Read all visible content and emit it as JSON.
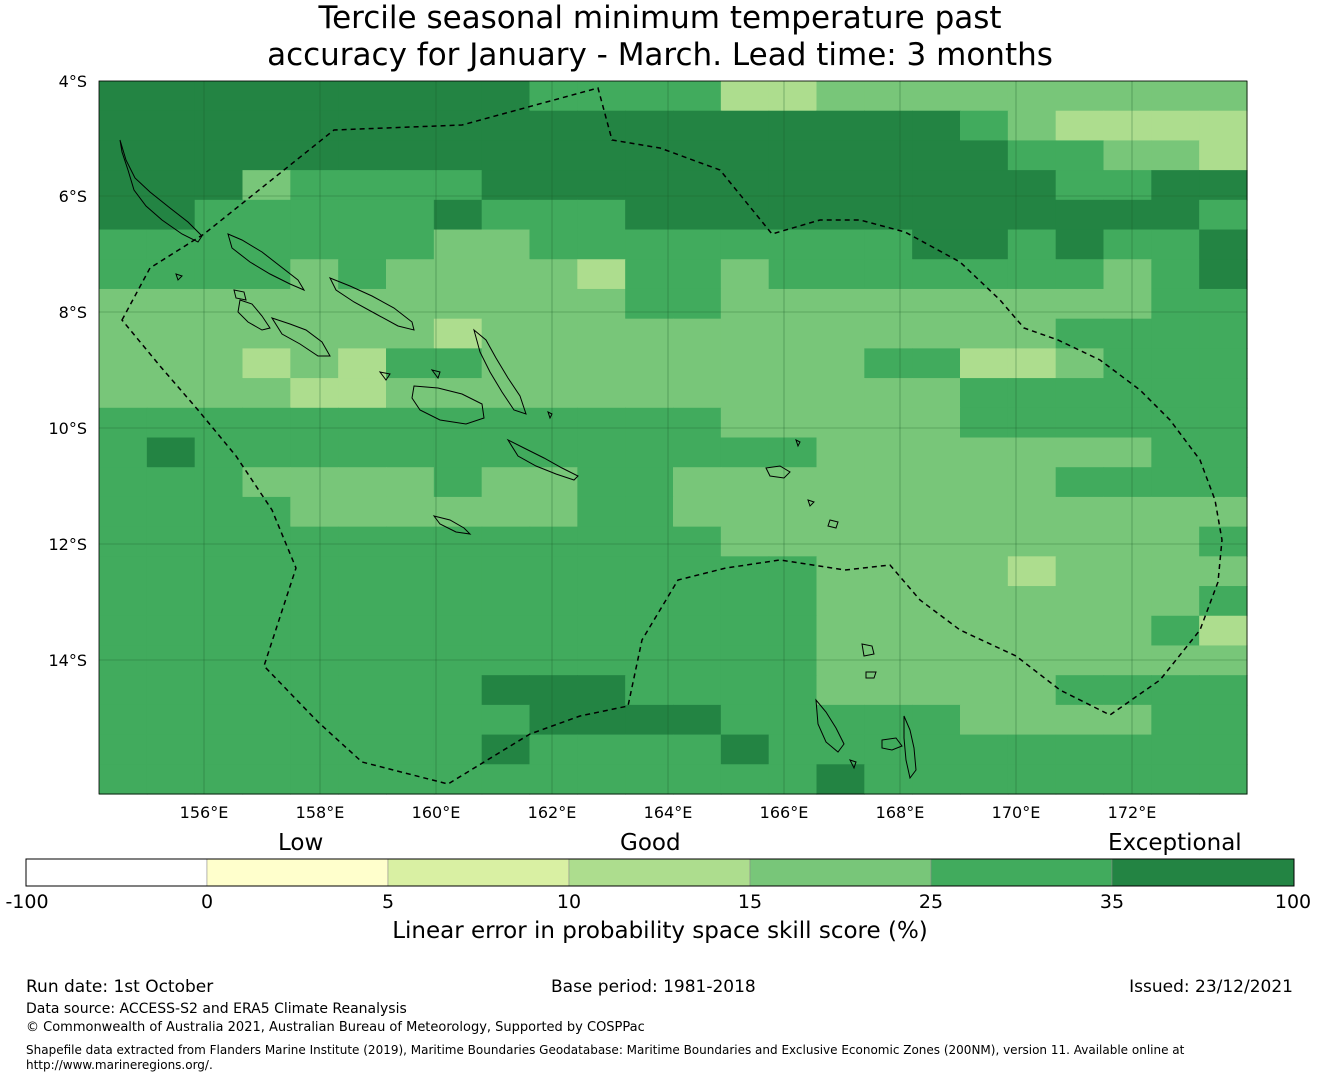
{
  "title_line1": "Tercile seasonal minimum temperature past",
  "title_line2": "accuracy for January - March. Lead time: 3 months",
  "map": {
    "lat_labels": [
      "4°S",
      "6°S",
      "8°S",
      "10°S",
      "12°S",
      "14°S"
    ],
    "lon_labels": [
      "156°E",
      "158°E",
      "160°E",
      "162°E",
      "164°E",
      "166°E",
      "168°E",
      "170°E",
      "172°E"
    ]
  },
  "legend": {
    "categories": [
      "Low",
      "Good",
      "Exceptional"
    ],
    "ticks": [
      "-100",
      "0",
      "5",
      "10",
      "15",
      "25",
      "35",
      "100"
    ],
    "colors": [
      "#ffffff",
      "#ffffcc",
      "#d9f0a3",
      "#addd8e",
      "#78c679",
      "#41ab5d",
      "#238443"
    ],
    "title": "Linear error in probability space skill score (%)"
  },
  "footer": {
    "run_date": "Run date: 1st October",
    "base_period": "Base period: 1981-2018",
    "issued": "Issued: 23/12/2021",
    "data_source": "Data source: ACCESS-S2 and ERA5 Climate Reanalysis",
    "copyright": "© Commonwealth of Australia 2021, Australian Bureau of Meteorology, Supported by COSPPac",
    "shapefile_line1": "Shapefile data extracted from Flanders Marine Institute (2019), Maritime Boundaries Geodatabase: Maritime Boundaries and Exclusive Economic Zones (200NM), version 11. Available online at",
    "shapefile_line2": "http://www.marineregions.org/."
  }
}
